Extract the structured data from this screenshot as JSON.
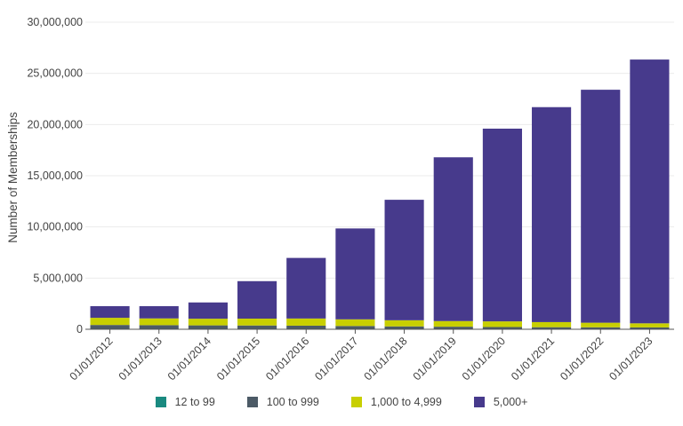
{
  "chart_data": {
    "type": "bar",
    "stacked": true,
    "categories": [
      "01/01/2012",
      "01/01/2013",
      "01/01/2014",
      "01/01/2015",
      "01/01/2016",
      "01/01/2017",
      "01/01/2018",
      "01/01/2019",
      "01/01/2020",
      "01/01/2021",
      "01/01/2022",
      "01/01/2023"
    ],
    "series": [
      {
        "name": "12 to 99",
        "color": "#1a8a80",
        "values": [
          20000,
          20000,
          20000,
          20000,
          20000,
          20000,
          20000,
          20000,
          20000,
          20000,
          20000,
          20000
        ]
      },
      {
        "name": "100 to 999",
        "color": "#4c5a66",
        "values": [
          400000,
          380000,
          360000,
          350000,
          330000,
          300000,
          260000,
          230000,
          200000,
          180000,
          170000,
          160000
        ]
      },
      {
        "name": "1,000 to 4,999",
        "color": "#c8cf00",
        "values": [
          700000,
          660000,
          650000,
          670000,
          700000,
          650000,
          600000,
          550000,
          550000,
          500000,
          450000,
          400000
        ]
      },
      {
        "name": "5,000+",
        "color": "#473a8c",
        "values": [
          1140000,
          1200000,
          1590000,
          3660000,
          5920000,
          8880000,
          11770000,
          16000000,
          18830000,
          21000000,
          22760000,
          25770000
        ]
      }
    ],
    "xlabel": "",
    "ylabel": "Number of Memberships",
    "ylim": [
      0,
      30000000
    ],
    "yticks": [
      "0",
      "5,000,000",
      "10,000,000",
      "15,000,000",
      "20,000,000",
      "25,000,000",
      "30,000,000"
    ],
    "grid": true,
    "legend": "bottom"
  }
}
